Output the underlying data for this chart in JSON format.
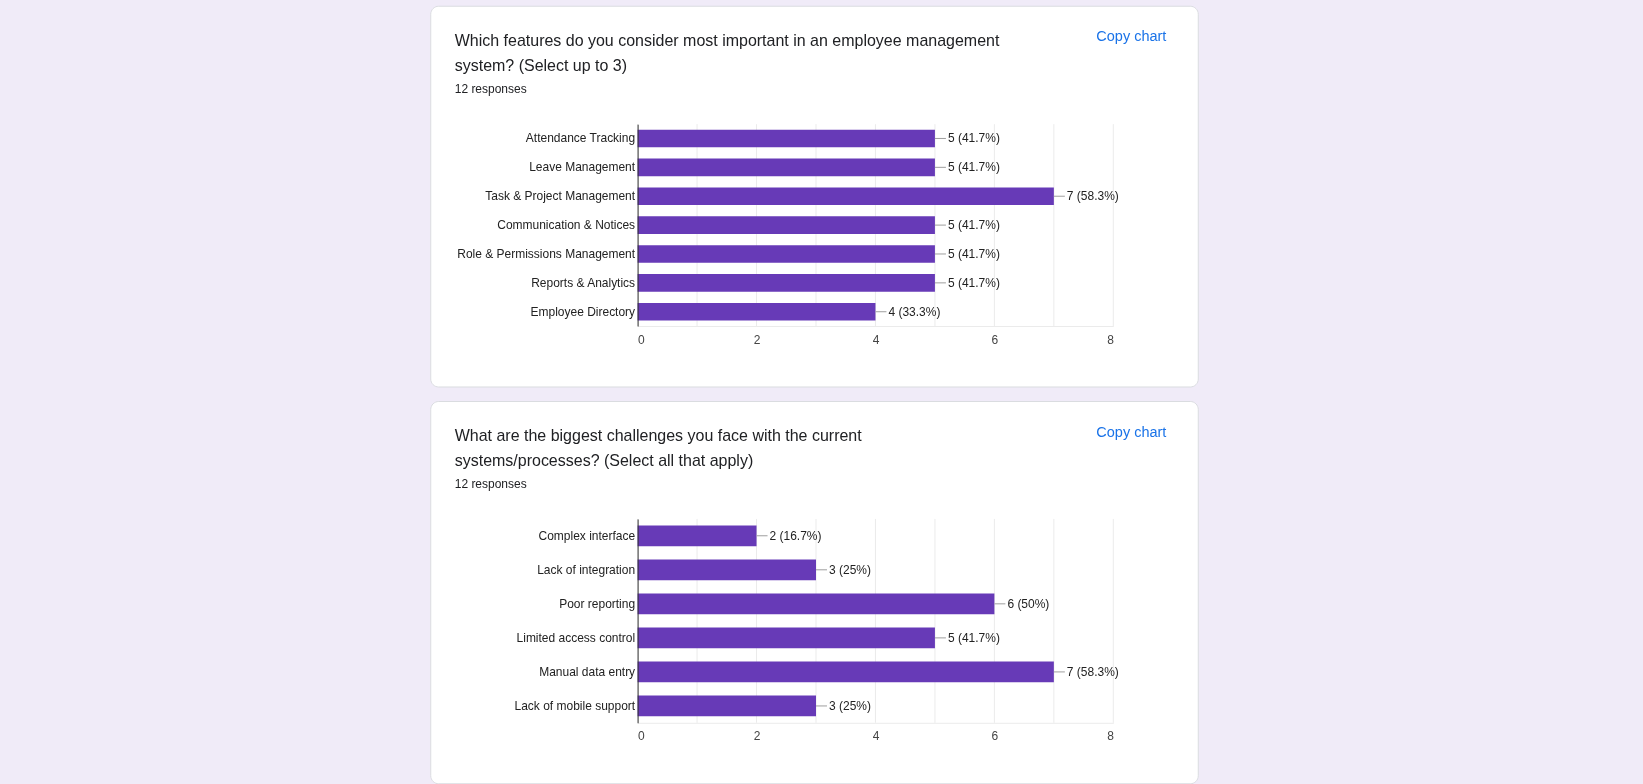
{
  "chart_data": [
    {
      "type": "bar",
      "orientation": "horizontal",
      "title": "Which features do you consider most important in an employee management system? (Select up to 3)",
      "subtitle": "12 responses",
      "annotations": [
        "Copy chart"
      ],
      "categories": [
        "Attendance Tracking",
        "Leave Management",
        "Task & Project Management",
        "Communication & Notices",
        "Role & Permissions Management",
        "Reports & Analytics",
        "Employee Directory"
      ],
      "values": [
        5,
        5,
        7,
        5,
        5,
        5,
        4
      ],
      "value_labels": [
        "5 (41.7%)",
        "5 (41.7%)",
        "7 (58.3%)",
        "5 (41.7%)",
        "5 (41.7%)",
        "5 (41.7%)",
        "4 (33.3%)"
      ],
      "color": "#673ab7",
      "xlim": [
        0,
        8
      ],
      "xticks": [
        0,
        {
          "value": 1,
          "label": null
        },
        2,
        {
          "value": 3,
          "label": null
        },
        4,
        {
          "value": 5,
          "label": null
        },
        6,
        {
          "value": 7,
          "label": null
        },
        8
      ],
      "grid": "x"
    },
    {
      "type": "bar",
      "orientation": "horizontal",
      "title": "What are the biggest challenges you face with the current systems/processes? (Select all that apply)",
      "subtitle": "12 responses",
      "annotations": [
        "Copy chart"
      ],
      "categories": [
        "Complex interface",
        "Lack of integration",
        "Poor reporting",
        "Limited access control",
        "Manual data entry",
        "Lack of mobile support"
      ],
      "values": [
        2,
        3,
        6,
        5,
        7,
        3
      ],
      "value_labels": [
        "2 (16.7%)",
        "3 (25%)",
        "6 (50%)",
        "5 (41.7%)",
        "7 (58.3%)",
        "3 (25%)"
      ],
      "color": "#673ab7",
      "xlim": [
        0,
        8
      ],
      "xticks": [
        0,
        {
          "value": 1,
          "label": null
        },
        2,
        {
          "value": 3,
          "label": null
        },
        4,
        {
          "value": 5,
          "label": null
        },
        6,
        {
          "value": 7,
          "label": null
        },
        8
      ],
      "grid": "x"
    }
  ]
}
